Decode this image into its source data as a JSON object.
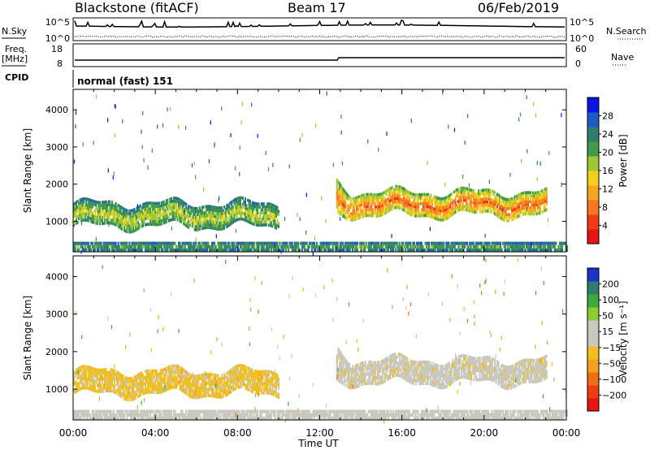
{
  "header": {
    "station": "Blackstone (fitACF)",
    "beam": "Beam 17",
    "date": "06/Feb/2019"
  },
  "strips": {
    "nsky_label": "N.Sky",
    "nsearch_label": "N.Search",
    "count_ticks": [
      "10^5",
      "10^0"
    ],
    "freq_label": "Freq.",
    "freq_unit": "[MHz]",
    "freq_ticks": [
      "18",
      "8"
    ],
    "nave_label": "Nave",
    "nave_ticks": [
      "60",
      "0"
    ],
    "cpid_label": "CPID",
    "cpid_value": "normal (fast) 151"
  },
  "xaxis": {
    "label": "Time UT",
    "ticks": [
      "00:00",
      "04:00",
      "08:00",
      "12:00",
      "16:00",
      "20:00",
      "00:00"
    ]
  },
  "colorbars": {
    "power": {
      "label": "Power [dB]",
      "ticks": [
        "28",
        "24",
        "20",
        "16",
        "12",
        "8",
        "4"
      ],
      "colors": [
        "#0a14e6",
        "#1f5bc7",
        "#2f7d6e",
        "#3f9a4a",
        "#9dc832",
        "#f0d21e",
        "#f5a51e",
        "#f5781e",
        "#f03c14",
        "#e61414"
      ]
    },
    "velocity": {
      "label": "Velocity [m s⁻¹]",
      "ticks": [
        "200",
        "100",
        "50",
        "15",
        "−15",
        "−50",
        "−100",
        "−200"
      ],
      "colors": [
        "#1e32c8",
        "#2f7d6e",
        "#3caa3c",
        "#8ccd32",
        "#c8c8be",
        "#c8c8be",
        "#f0be1e",
        "#f5a01e",
        "#f06e14",
        "#f03c14",
        "#e61414"
      ]
    }
  },
  "chart_data": [
    {
      "type": "heatmap",
      "title": "Power",
      "xlabel": "Time UT",
      "ylabel": "Slant Range [km]",
      "x_ticks": [
        "00:00",
        "04:00",
        "08:00",
        "12:00",
        "16:00",
        "20:00",
        "00:00"
      ],
      "y_ticks": [
        1000,
        2000,
        3000,
        4000
      ],
      "ylim": [
        180,
        4550
      ],
      "zlabel": "Power [dB]",
      "zlim": [
        0,
        32
      ],
      "scatter_regions": [
        {
          "name": "early band",
          "t_start": 0.0,
          "t_end": 10.0,
          "range_lo": 850,
          "range_hi": 1500,
          "power_db": 14
        },
        {
          "name": "late band",
          "t_start": 12.8,
          "t_end": 23.0,
          "range_lo": 1150,
          "range_hi": 1800,
          "power_db": 22
        },
        {
          "name": "near ground scatter",
          "t_start": 0.0,
          "t_end": 24.0,
          "range_lo": 180,
          "range_hi": 450,
          "power_db": 10
        }
      ]
    },
    {
      "type": "heatmap",
      "title": "Velocity",
      "xlabel": "Time UT",
      "ylabel": "Slant Range [km]",
      "x_ticks": [
        "00:00",
        "04:00",
        "08:00",
        "12:00",
        "16:00",
        "20:00",
        "00:00"
      ],
      "y_ticks": [
        1000,
        2000,
        3000,
        4000
      ],
      "ylim": [
        180,
        4550
      ],
      "zlabel": "Velocity [m s⁻¹]",
      "zlim": [
        -250,
        250
      ],
      "scatter_regions": [
        {
          "name": "early band",
          "t_start": 0.0,
          "t_end": 10.0,
          "range_lo": 850,
          "range_hi": 1500,
          "velocity": -40
        },
        {
          "name": "late band",
          "t_start": 12.8,
          "t_end": 23.0,
          "range_lo": 1150,
          "range_hi": 1800,
          "velocity": 0
        },
        {
          "name": "near ground scatter",
          "t_start": 0.0,
          "t_end": 24.0,
          "range_lo": 180,
          "range_hi": 450,
          "velocity": 30
        }
      ]
    }
  ]
}
